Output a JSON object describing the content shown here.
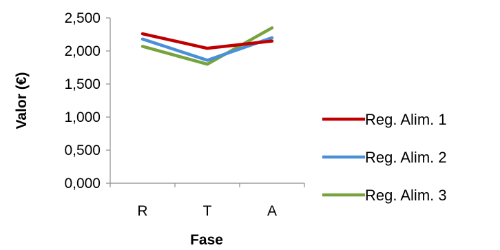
{
  "chart_data": {
    "type": "line",
    "categories": [
      "R",
      "T",
      "A"
    ],
    "series": [
      {
        "name": "Reg. Alim. 1",
        "values": [
          2.26,
          2.04,
          2.15
        ],
        "color": "#c00000"
      },
      {
        "name": "Reg. Alim. 2",
        "values": [
          2.18,
          1.86,
          2.2
        ],
        "color": "#4a90d9"
      },
      {
        "name": "Reg. Alim. 3",
        "values": [
          2.07,
          1.8,
          2.35
        ],
        "color": "#77a33d"
      }
    ],
    "title": "",
    "xlabel": "Fase",
    "ylabel": "Valor (€)",
    "ylim": [
      0,
      2.5
    ],
    "yticks": [
      0,
      0.5,
      1.0,
      1.5,
      2.0,
      2.5
    ],
    "ytick_labels": [
      "0,000",
      "0,500",
      "1,000",
      "1,500",
      "2,000",
      "2,500"
    ],
    "grid": false,
    "legend_position": "right"
  }
}
